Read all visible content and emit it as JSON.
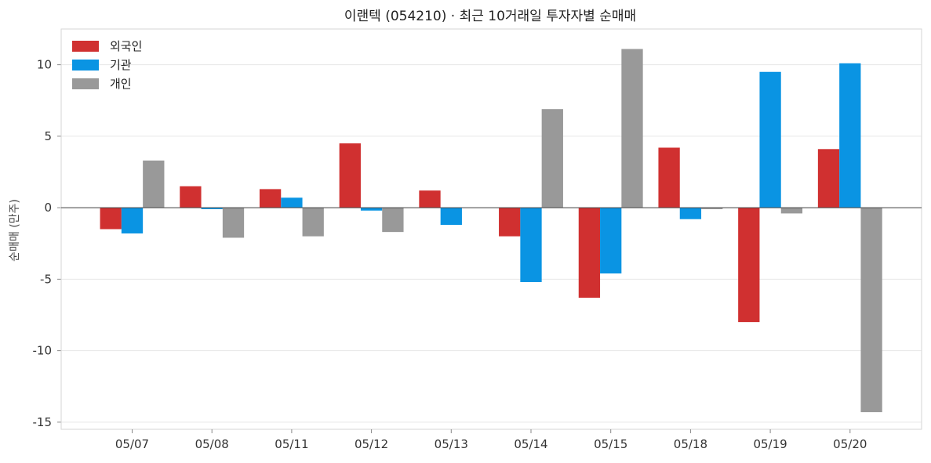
{
  "chart_data": {
    "type": "bar",
    "title": "이랜텍 (054210) · 최근 10거래일 투자자별 순매매",
    "xlabel": "",
    "ylabel": "순매매 (만주)",
    "ylim": [
      -15.5,
      12.5
    ],
    "yticks": [
      10,
      5,
      0,
      -5,
      -10,
      -15
    ],
    "ytick_labels": [
      "10",
      "5",
      "0",
      "-5",
      "-10",
      "-15"
    ],
    "grid": true,
    "legend_position": "top-left",
    "categories": [
      "05/07",
      "05/08",
      "05/11",
      "05/12",
      "05/13",
      "05/14",
      "05/15",
      "05/18",
      "05/19",
      "05/20"
    ],
    "series": [
      {
        "name": "외국인",
        "color": "#d03030",
        "values": [
          -1.5,
          1.5,
          1.3,
          4.5,
          1.2,
          -2.0,
          -6.3,
          4.2,
          -8.0,
          4.1
        ]
      },
      {
        "name": "기관",
        "color": "#0a94e3",
        "values": [
          -1.8,
          -0.1,
          0.7,
          -0.2,
          -1.2,
          -5.2,
          -4.6,
          -0.8,
          9.5,
          10.1
        ]
      },
      {
        "name": "개인",
        "color": "#999999",
        "values": [
          3.3,
          -2.1,
          -2.0,
          -1.7,
          0.0,
          6.9,
          11.1,
          -0.1,
          -0.4,
          -14.3
        ]
      }
    ]
  }
}
